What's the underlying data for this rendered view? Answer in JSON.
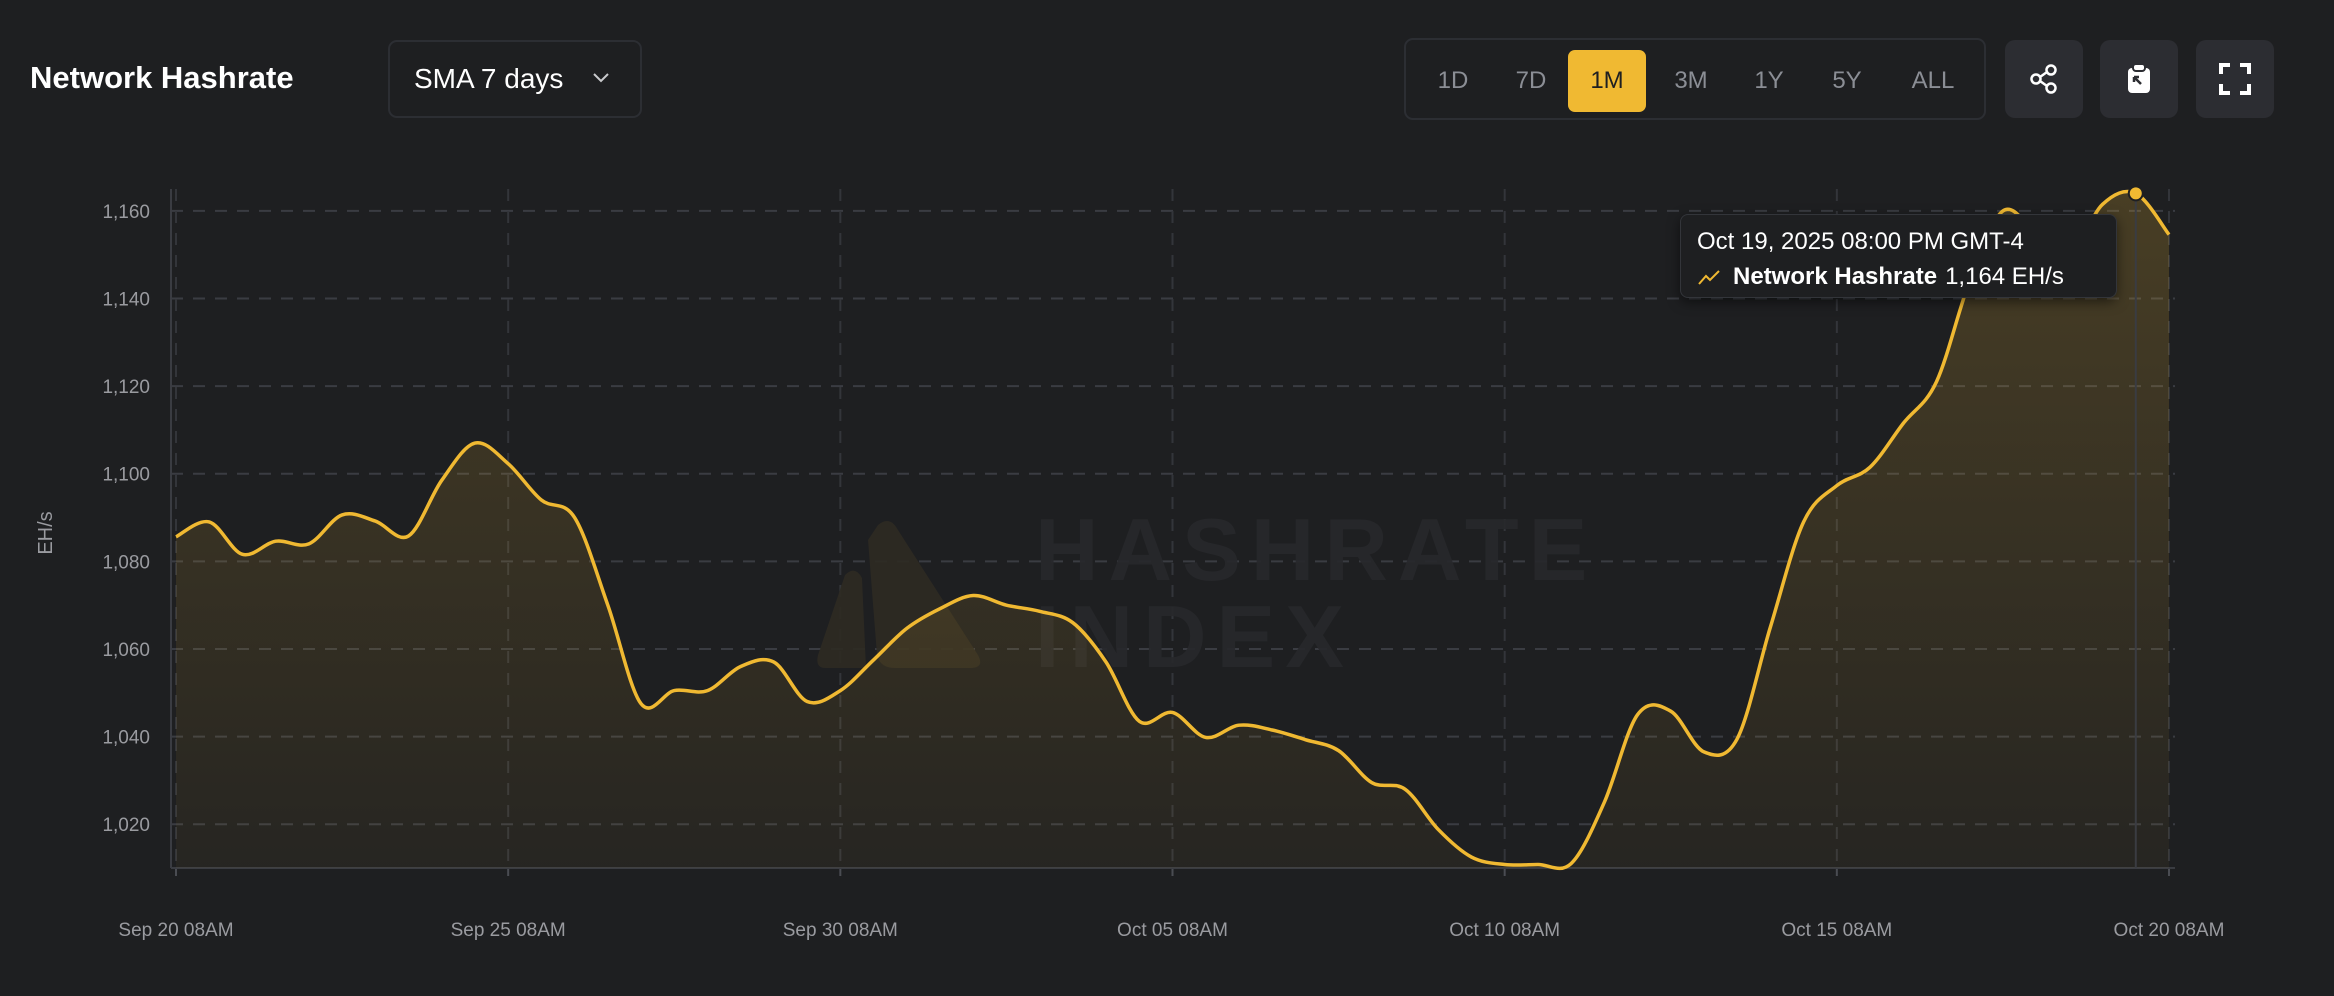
{
  "header": {
    "title": "Network Hashrate",
    "average_select": {
      "value": "SMA 7 days",
      "icon": "chevron-down-icon"
    },
    "ranges": [
      "1D",
      "7D",
      "1M",
      "3M",
      "1Y",
      "5Y",
      "ALL"
    ],
    "active_range": "1M",
    "actions": [
      {
        "name": "share",
        "icon": "share-icon"
      },
      {
        "name": "copy-image",
        "icon": "clipboard-icon"
      },
      {
        "name": "fullscreen",
        "icon": "fullscreen-icon"
      }
    ]
  },
  "colors": {
    "background": "#1e1f21",
    "accent": "#f0b932",
    "grid": "#3a3c42",
    "axis_text": "#9a9ba0"
  },
  "watermark": {
    "line1": "HASHRATE",
    "line2": "INDEX"
  },
  "tooltip": {
    "date": "Oct 19, 2025 08:00 PM GMT-4",
    "series": "Network Hashrate",
    "value": "1,164 EH/s",
    "icon": "line-chart-icon"
  },
  "chart_data": {
    "type": "area",
    "title": "Network Hashrate",
    "xlabel": "",
    "ylabel": "EH/s",
    "ylim": [
      1010,
      1165
    ],
    "xlim": [
      "2025-09-20 08:00",
      "2025-10-20 08:00"
    ],
    "grid": true,
    "yticks": [
      1020,
      1040,
      1060,
      1080,
      1100,
      1120,
      1140,
      1160
    ],
    "ytick_labels": [
      "1,020",
      "1,040",
      "1,060",
      "1,080",
      "1,100",
      "1,120",
      "1,140",
      "1,160"
    ],
    "xticks": [
      "2025-09-20 08:00",
      "2025-09-25 08:00",
      "2025-09-30 08:00",
      "2025-10-05 08:00",
      "2025-10-10 08:00",
      "2025-10-15 08:00",
      "2025-10-20 08:00"
    ],
    "xtick_labels": [
      "Sep 20 08AM",
      "Sep 25 08AM",
      "Sep 30 08AM",
      "Oct 05 08AM",
      "Oct 10 08AM",
      "Oct 15 08AM",
      "Oct 20 08AM"
    ],
    "highlighted_point": {
      "x": "2025-10-19 20:00",
      "y": 1164
    },
    "series": [
      {
        "name": "Network Hashrate",
        "x": [
          "2025-09-20 08:00",
          "2025-09-20 20:00",
          "2025-09-21 08:00",
          "2025-09-21 20:00",
          "2025-09-22 08:00",
          "2025-09-22 20:00",
          "2025-09-23 08:00",
          "2025-09-23 20:00",
          "2025-09-24 08:00",
          "2025-09-24 20:00",
          "2025-09-25 08:00",
          "2025-09-25 20:00",
          "2025-09-26 08:00",
          "2025-09-26 20:00",
          "2025-09-27 08:00",
          "2025-09-27 20:00",
          "2025-09-28 08:00",
          "2025-09-28 20:00",
          "2025-09-29 08:00",
          "2025-09-29 20:00",
          "2025-09-30 08:00",
          "2025-09-30 20:00",
          "2025-10-01 08:00",
          "2025-10-01 20:00",
          "2025-10-02 08:00",
          "2025-10-02 20:00",
          "2025-10-03 08:00",
          "2025-10-03 20:00",
          "2025-10-04 08:00",
          "2025-10-04 20:00",
          "2025-10-05 08:00",
          "2025-10-05 20:00",
          "2025-10-06 08:00",
          "2025-10-06 20:00",
          "2025-10-07 08:00",
          "2025-10-07 20:00",
          "2025-10-08 08:00",
          "2025-10-08 20:00",
          "2025-10-09 08:00",
          "2025-10-09 20:00",
          "2025-10-10 08:00",
          "2025-10-10 20:00",
          "2025-10-11 08:00",
          "2025-10-11 20:00",
          "2025-10-12 08:00",
          "2025-10-12 20:00",
          "2025-10-13 08:00",
          "2025-10-13 20:00",
          "2025-10-14 08:00",
          "2025-10-14 20:00",
          "2025-10-15 08:00",
          "2025-10-15 20:00",
          "2025-10-16 08:00",
          "2025-10-16 20:00",
          "2025-10-17 08:00",
          "2025-10-17 20:00",
          "2025-10-18 08:00",
          "2025-10-18 20:00",
          "2025-10-19 08:00",
          "2025-10-19 20:00",
          "2025-10-20 08:00"
        ],
        "y": [
          1085.6,
          1089,
          1081.6,
          1084.6,
          1084,
          1090.6,
          1089.2,
          1085.8,
          1098.5,
          1107,
          1102.3,
          1094,
          1090,
          1070,
          1047.5,
          1050.5,
          1050.5,
          1056,
          1057,
          1048,
          1050.5,
          1057.5,
          1064.7,
          1069.2,
          1072.2,
          1070,
          1068.6,
          1066,
          1057,
          1043.5,
          1045.5,
          1039.8,
          1042.6,
          1041.5,
          1039.3,
          1036.8,
          1029.5,
          1028,
          1018.8,
          1012.5,
          1010.8,
          1010.8,
          1011,
          1025,
          1045,
          1045.8,
          1036.5,
          1039.5,
          1065,
          1089,
          1097.3,
          1101.5,
          1111.5,
          1121,
          1144,
          1160,
          1155,
          1150,
          1161.5,
          1164,
          1154.6
        ]
      }
    ]
  }
}
